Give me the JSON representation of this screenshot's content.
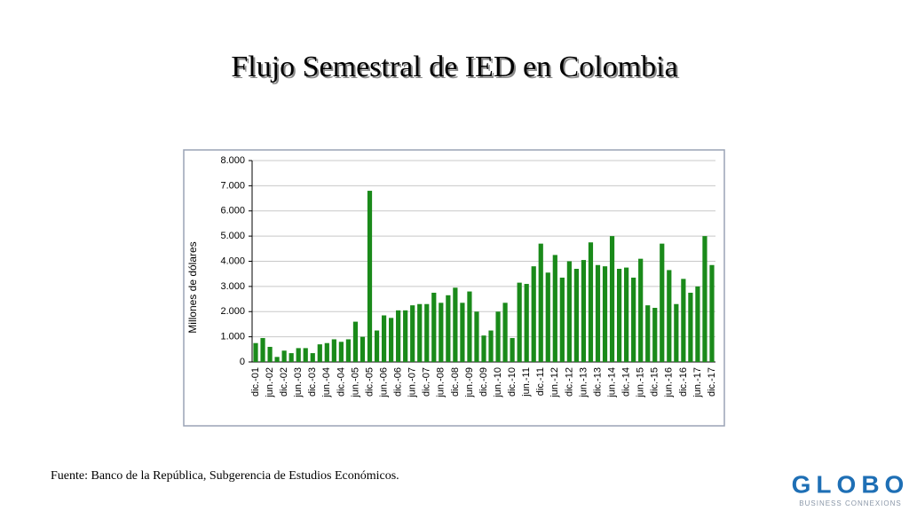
{
  "chart_data": {
    "type": "bar",
    "title": "Flujo Semestral de IED en Colombia",
    "ylabel": "Millones de dólares",
    "categories": [
      "dic.-01",
      null,
      "jun.-02",
      null,
      "dic.-02",
      null,
      "jun.-03",
      null,
      "dic.-03",
      null,
      "jun.-04",
      null,
      "dic.-04",
      null,
      "jun.-05",
      null,
      "dic.-05",
      null,
      "jun.-06",
      null,
      "dic.-06",
      null,
      "jun.-07",
      null,
      "dic.-07",
      null,
      "jun.-08",
      null,
      "dic.-08",
      null,
      "jun.-09",
      null,
      "dic.-09",
      null,
      "jun.-10",
      null,
      "dic.-10",
      null,
      "jun.-11",
      null,
      "dic.-11",
      null,
      "jun.-12",
      null,
      "dic.-12",
      null,
      "jun.-13",
      null,
      "dic.-13",
      null,
      "jun.-14",
      null,
      "dic.-14",
      null,
      "jun.-15",
      null,
      "dic.-15",
      null,
      "jun.-16",
      null,
      "dic.-16",
      null,
      "jun.-17",
      null,
      "dic.-17"
    ],
    "values": [
      750,
      950,
      600,
      200,
      450,
      350,
      550,
      550,
      350,
      700,
      750,
      900,
      800,
      900,
      1600,
      1000,
      6800,
      1250,
      1850,
      1750,
      2050,
      2050,
      2250,
      2300,
      2300,
      2750,
      2350,
      2650,
      2950,
      2350,
      2800,
      2000,
      1050,
      1250,
      2000,
      2350,
      950,
      3150,
      3100,
      3800,
      4700,
      3550,
      4250,
      3350,
      4000,
      3700,
      4050,
      4750,
      3850,
      3800,
      5000,
      3700,
      3750,
      3350,
      4100,
      2250,
      2150,
      4700,
      3650,
      2300,
      3300,
      2750,
      3000,
      5000,
      3850
    ],
    "color": "#1a8a1a",
    "ylim": [
      0,
      8000
    ],
    "yticks": [
      0,
      {
        "value": 1000,
        "label": "1.000"
      },
      {
        "value": 2000,
        "label": "2.000"
      },
      {
        "value": 3000,
        "label": "3.000"
      },
      {
        "value": 4000,
        "label": "4.000"
      },
      {
        "value": 5000,
        "label": "5.000"
      },
      {
        "value": 6000,
        "label": "6.000"
      },
      {
        "value": 7000,
        "label": "7.000"
      },
      {
        "value": 8000,
        "label": "8.000"
      }
    ],
    "grid": true
  },
  "source": "Fuente: Banco de la República, Subgerencia de Estudios Económicos.",
  "logo": {
    "name": "GLOBO",
    "tagline": "BUSINESS CONNEXIONS"
  }
}
